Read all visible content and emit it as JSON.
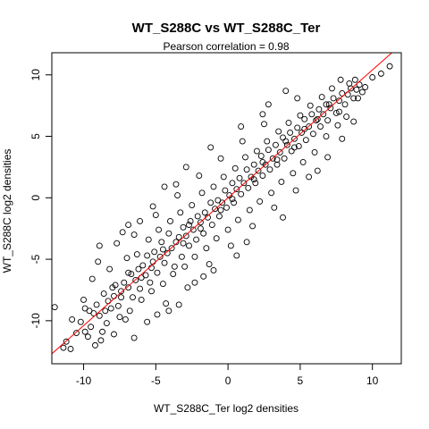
{
  "chart_data": {
    "type": "scatter",
    "title": "WT_S288C vs WT_S288C_Ter",
    "subtitle": "Pearson correlation =  0.98",
    "xlabel": "WT_S288C_Ter log2 densities",
    "ylabel": "WT_S288C log2 densities",
    "xlim": [
      -12.2,
      12.0
    ],
    "ylim": [
      -13.5,
      11.8
    ],
    "x_ticks": [
      -10,
      -5,
      0,
      5,
      10
    ],
    "y_ticks": [
      -10,
      -5,
      0,
      5,
      10
    ],
    "grid": false,
    "marker": "open-circle",
    "point_color": "#000000",
    "fit_line": {
      "intercept": 0.0,
      "slope": 1.04,
      "color": "#ff0000"
    },
    "series": [
      {
        "values": [
          [
            -11.2,
            -11.7
          ],
          [
            -10.8,
            -9.9
          ],
          [
            -10.2,
            -10.1
          ],
          [
            -9.9,
            -9.0
          ],
          [
            -9.7,
            -11.3
          ],
          [
            -9.5,
            -10.5
          ],
          [
            -9.3,
            -9.4
          ],
          [
            -9.1,
            -8.7
          ],
          [
            -8.9,
            -9.6
          ],
          [
            -8.7,
            -10.9
          ],
          [
            -8.6,
            -7.8
          ],
          [
            -8.3,
            -8.4
          ],
          [
            -8.1,
            -9.0
          ],
          [
            -7.9,
            -8.0
          ],
          [
            -7.8,
            -7.1
          ],
          [
            -7.6,
            -8.8
          ],
          [
            -7.4,
            -7.6
          ],
          [
            -7.2,
            -6.9
          ],
          [
            -7.1,
            -9.9
          ],
          [
            -6.9,
            -7.3
          ],
          [
            -6.7,
            -6.2
          ],
          [
            -6.6,
            -8.1
          ],
          [
            -6.4,
            -6.7
          ],
          [
            -6.2,
            -5.8
          ],
          [
            -6.1,
            -7.4
          ],
          [
            -5.9,
            -5.5
          ],
          [
            -5.7,
            -6.3
          ],
          [
            -5.6,
            -4.7
          ],
          [
            -5.4,
            -6.9
          ],
          [
            -5.2,
            -5.2
          ],
          [
            -5.1,
            -4.4
          ],
          [
            -4.9,
            -6.1
          ],
          [
            -4.7,
            -4.8
          ],
          [
            -4.6,
            -3.6
          ],
          [
            -4.4,
            -5.3
          ],
          [
            -4.2,
            -4.5
          ],
          [
            -4.1,
            -2.9
          ],
          [
            -3.9,
            -4.1
          ],
          [
            -3.7,
            -5.6
          ],
          [
            -3.6,
            -3.6
          ],
          [
            -3.4,
            -3.2
          ],
          [
            -3.2,
            -4.8
          ],
          [
            -3.1,
            -2.4
          ],
          [
            -2.9,
            -3.1
          ],
          [
            -2.7,
            -3.9
          ],
          [
            -2.6,
            -1.9
          ],
          [
            -2.4,
            -2.6
          ],
          [
            -2.2,
            -3.4
          ],
          [
            -2.1,
            -1.5
          ],
          [
            -1.9,
            -2.0
          ],
          [
            -1.7,
            -2.9
          ],
          [
            -1.6,
            -1.2
          ],
          [
            -1.4,
            -1.6
          ],
          [
            -1.2,
            -0.4
          ],
          [
            -1.1,
            -2.2
          ],
          [
            -0.9,
            -0.9
          ],
          [
            -0.7,
            -0.2
          ],
          [
            -0.6,
            -1.5
          ],
          [
            -0.4,
            -0.4
          ],
          [
            -0.2,
            0.6
          ],
          [
            -0.1,
            -0.8
          ],
          [
            0.1,
            0.2
          ],
          [
            0.3,
            1.2
          ],
          [
            0.4,
            -0.4
          ],
          [
            0.6,
            0.7
          ],
          [
            0.8,
            1.6
          ],
          [
            0.9,
            0.3
          ],
          [
            1.1,
            1.2
          ],
          [
            1.3,
            2.3
          ],
          [
            1.4,
            0.8
          ],
          [
            1.6,
            1.7
          ],
          [
            1.8,
            2.7
          ],
          [
            1.9,
            1.2
          ],
          [
            2.1,
            2.2
          ],
          [
            2.3,
            3.4
          ],
          [
            2.4,
            1.8
          ],
          [
            2.6,
            2.7
          ],
          [
            2.8,
            3.9
          ],
          [
            2.9,
            2.3
          ],
          [
            3.1,
            3.2
          ],
          [
            3.3,
            4.3
          ],
          [
            3.4,
            2.7
          ],
          [
            3.6,
            3.7
          ],
          [
            3.8,
            4.9
          ],
          [
            3.9,
            3.2
          ],
          [
            4.1,
            4.3
          ],
          [
            4.3,
            5.3
          ],
          [
            4.4,
            3.8
          ],
          [
            4.6,
            4.8
          ],
          [
            4.8,
            5.7
          ],
          [
            4.9,
            4.2
          ],
          [
            5.1,
            5.3
          ],
          [
            5.3,
            6.4
          ],
          [
            5.4,
            4.7
          ],
          [
            5.6,
            5.8
          ],
          [
            5.8,
            6.8
          ],
          [
            5.9,
            5.2
          ],
          [
            6.1,
            6.3
          ],
          [
            6.3,
            7.2
          ],
          [
            6.4,
            5.8
          ],
          [
            6.6,
            6.8
          ],
          [
            6.8,
            7.6
          ],
          [
            6.9,
            6.3
          ],
          [
            7.1,
            7.3
          ],
          [
            7.3,
            8.1
          ],
          [
            7.5,
            6.9
          ],
          [
            7.7,
            7.9
          ],
          [
            7.9,
            8.5
          ],
          [
            8.1,
            7.6
          ],
          [
            8.3,
            8.4
          ],
          [
            8.5,
            8.9
          ],
          [
            8.7,
            8.1
          ],
          [
            8.9,
            8.8
          ],
          [
            9.1,
            9.2
          ],
          [
            9.3,
            8.6
          ],
          [
            -9.4,
            -6.6
          ],
          [
            -8.2,
            -5.8
          ],
          [
            -7.0,
            -4.9
          ],
          [
            -6.3,
            -4.6
          ],
          [
            -5.5,
            -3.4
          ],
          [
            -4.8,
            -2.6
          ],
          [
            -4.0,
            -1.9
          ],
          [
            -3.3,
            -1.2
          ],
          [
            -2.5,
            -0.6
          ],
          [
            -1.8,
            0.4
          ],
          [
            -1.0,
            0.9
          ],
          [
            -0.3,
            1.7
          ],
          [
            0.5,
            2.4
          ],
          [
            1.2,
            3.3
          ],
          [
            2.0,
            3.8
          ],
          [
            2.7,
            4.6
          ],
          [
            3.5,
            5.4
          ],
          [
            4.2,
            6.1
          ],
          [
            5.0,
            6.7
          ],
          [
            5.7,
            7.5
          ],
          [
            -8.8,
            -11.6
          ],
          [
            -7.5,
            -9.7
          ],
          [
            -6.8,
            -9.2
          ],
          [
            -6.0,
            -8.3
          ],
          [
            -5.3,
            -7.6
          ],
          [
            -4.5,
            -7.0
          ],
          [
            -3.8,
            -6.2
          ],
          [
            -3.0,
            -5.6
          ],
          [
            -2.3,
            -4.8
          ],
          [
            -1.5,
            -4.1
          ],
          [
            -0.8,
            -3.3
          ],
          [
            0.0,
            -2.6
          ],
          [
            0.7,
            -1.8
          ],
          [
            1.5,
            -1.0
          ],
          [
            2.2,
            -0.3
          ],
          [
            3.0,
            0.4
          ],
          [
            3.7,
            1.3
          ],
          [
            4.5,
            2.0
          ],
          [
            5.2,
            2.9
          ],
          [
            6.0,
            3.7
          ],
          [
            -6.5,
            -3.0
          ],
          [
            -5.0,
            -1.4
          ],
          [
            -3.5,
            0.2
          ],
          [
            -2.0,
            1.8
          ],
          [
            -0.5,
            3.2
          ],
          [
            1.0,
            4.6
          ],
          [
            2.5,
            6.0
          ],
          [
            -4.3,
            -8.6
          ],
          [
            -2.8,
            -7.3
          ],
          [
            -1.3,
            -5.4
          ],
          [
            0.2,
            -3.9
          ],
          [
            1.7,
            -2.3
          ],
          [
            3.2,
            -0.8
          ],
          [
            4.7,
            0.6
          ],
          [
            6.2,
            2.2
          ],
          [
            -11.4,
            -12.2
          ],
          [
            -10.5,
            -11.0
          ],
          [
            -10.0,
            -8.3
          ],
          [
            -9.6,
            -9.2
          ],
          [
            -8.4,
            -10.2
          ],
          [
            6.5,
            8.2
          ],
          [
            7.2,
            8.9
          ],
          [
            7.8,
            9.6
          ],
          [
            8.4,
            9.3
          ],
          [
            9.0,
            8.1
          ],
          [
            9.5,
            9.0
          ],
          [
            10.0,
            9.8
          ],
          [
            10.6,
            10.1
          ],
          [
            11.2,
            10.7
          ],
          [
            6.8,
            5.0
          ],
          [
            7.6,
            5.9
          ],
          [
            8.2,
            6.6
          ],
          [
            -1.7,
            -6.4
          ],
          [
            0.6,
            -4.7
          ],
          [
            2.4,
            6.8
          ],
          [
            -3.6,
            1.1
          ],
          [
            -7.3,
            -2.8
          ],
          [
            -6.1,
            -1.9
          ],
          [
            -8.9,
            -3.9
          ],
          [
            4.8,
            8.1
          ],
          [
            -12.0,
            -8.9
          ],
          [
            -10.9,
            -12.3
          ],
          [
            -9.9,
            -10.9
          ],
          [
            -9.2,
            -12.0
          ],
          [
            -7.9,
            -11.1
          ],
          [
            -6.5,
            -11.4
          ],
          [
            -5.6,
            -10.1
          ],
          [
            -4.9,
            -9.5
          ],
          [
            -4.1,
            -9.2
          ],
          [
            -3.4,
            -8.7
          ],
          [
            -2.3,
            -6.9
          ],
          [
            -1.0,
            -5.9
          ],
          [
            1.3,
            -3.6
          ],
          [
            3.8,
            -1.6
          ],
          [
            5.6,
            1.7
          ],
          [
            -9.0,
            -5.2
          ],
          [
            -7.7,
            -3.7
          ],
          [
            -6.9,
            -2.2
          ],
          [
            -5.2,
            -0.7
          ],
          [
            -4.4,
            0.9
          ],
          [
            -2.9,
            2.5
          ],
          [
            -1.2,
            4.1
          ],
          [
            0.9,
            5.8
          ],
          [
            2.8,
            7.6
          ],
          [
            4.0,
            8.7
          ],
          [
            6.9,
            3.3
          ],
          [
            7.9,
            4.8
          ],
          [
            8.7,
            6.2
          ],
          [
            -0.5,
            -1.0
          ],
          [
            0.3,
            -0.1
          ],
          [
            -1.9,
            -2.5
          ],
          [
            -2.7,
            -2.2
          ],
          [
            -3.1,
            -3.7
          ],
          [
            -4.5,
            -4.2
          ],
          [
            -5.3,
            -5.7
          ],
          [
            -6.0,
            -6.5
          ],
          [
            -6.9,
            -6.1
          ],
          [
            -7.4,
            -8.1
          ],
          [
            -8.0,
            -7.3
          ],
          [
            -8.5,
            -9.2
          ],
          [
            1.8,
            1.5
          ],
          [
            2.4,
            2.9
          ],
          [
            3.4,
            3.1
          ],
          [
            4.0,
            4.6
          ],
          [
            4.6,
            4.1
          ],
          [
            5.3,
            5.6
          ],
          [
            6.2,
            6.4
          ],
          [
            7.0,
            7.6
          ],
          [
            7.7,
            7.0
          ],
          [
            8.8,
            9.6
          ]
        ]
      }
    ]
  }
}
